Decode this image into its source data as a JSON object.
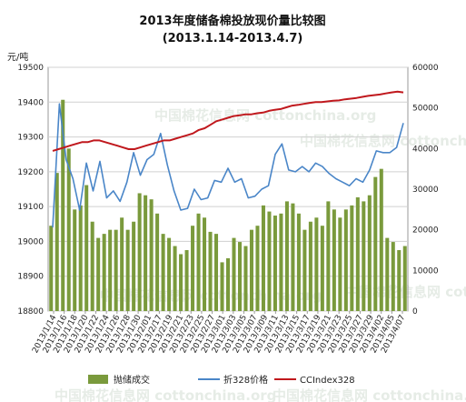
{
  "chart_data": {
    "type": "bar",
    "title": "2013年度储备棉投放现价量比较图",
    "subtitle": "(2013.1.14-2013.4.7)",
    "ylabel_left": "元/吨",
    "ylim_left": [
      18800,
      19500
    ],
    "yticks_left": [
      "18800",
      "18900",
      "19000",
      "19100",
      "19200",
      "19300",
      "19400",
      "19500"
    ],
    "ylim_right": [
      0,
      60000
    ],
    "yticks_right": [
      "0",
      "10000",
      "20000",
      "30000",
      "40000",
      "50000",
      "60000"
    ],
    "x_tick_labels": [
      "2013/1/14",
      "2013/1/16",
      "2013/1/18",
      "2013/1/20",
      "2013/1/22",
      "2013/1/24",
      "2013/1/26",
      "2013/1/28",
      "2013/1/30",
      "2013/2/01",
      "2013/2/17",
      "2013/2/19",
      "2013/2/21",
      "2013/2/23",
      "2013/2/25",
      "2013/2/27",
      "2013/3/01",
      "2013/3/03",
      "2013/3/05",
      "2013/3/07",
      "2013/3/09",
      "2013/3/11",
      "2013/3/13",
      "2013/3/15",
      "2013/3/17",
      "2013/3/19",
      "2013/3/21",
      "2013/3/23",
      "2013/3/25",
      "2013/3/27",
      "2013/3/29",
      "2013/4/02",
      "2013/4/05",
      "2013/4/07"
    ],
    "legend_position": "bottom",
    "grid": true,
    "series": [
      {
        "name": "抛储成交",
        "kind": "bar",
        "axis": "right",
        "color": "#7a9a3c",
        "values": [
          21000,
          34000,
          52000,
          40000,
          25000,
          26000,
          31000,
          22000,
          18000,
          19000,
          20000,
          20000,
          23000,
          20000,
          22000,
          29000,
          28500,
          27500,
          24000,
          19000,
          18000,
          16000,
          14000,
          15000,
          21000,
          24000,
          23000,
          19500,
          19000,
          12000,
          13000,
          18000,
          17000,
          16000,
          20000,
          21000,
          26000,
          24500,
          23500,
          24000,
          27000,
          26500,
          24000,
          20000,
          22000,
          23000,
          21000,
          27000,
          25000,
          23000,
          25000,
          26000,
          28000,
          27000,
          28500,
          33000,
          35000,
          18000,
          17000,
          15000,
          16000
        ]
      },
      {
        "name": "折328价格",
        "kind": "line",
        "axis": "left",
        "color": "#4a86c8",
        "values": [
          19040,
          19395,
          19235,
          19180,
          19090,
          19225,
          19145,
          19230,
          19125,
          19145,
          19115,
          19170,
          19255,
          19190,
          19235,
          19250,
          19310,
          19220,
          19145,
          19090,
          19095,
          19150,
          19120,
          19125,
          19175,
          19170,
          19210,
          19170,
          19180,
          19125,
          19130,
          19150,
          19160,
          19250,
          19280,
          19205,
          19200,
          19215,
          19200,
          19225,
          19215,
          19195,
          19180,
          19170,
          19160,
          19180,
          19170,
          19205,
          19260,
          19255,
          19255,
          19270,
          19340
        ]
      },
      {
        "name": "CCIndex328",
        "kind": "line",
        "axis": "left",
        "color": "#c0181d",
        "values": [
          19260,
          19265,
          19270,
          19275,
          19280,
          19285,
          19285,
          19290,
          19290,
          19285,
          19280,
          19275,
          19270,
          19265,
          19265,
          19270,
          19275,
          19280,
          19285,
          19290,
          19290,
          19295,
          19300,
          19305,
          19310,
          19320,
          19325,
          19335,
          19345,
          19350,
          19355,
          19360,
          19362,
          19365,
          19365,
          19368,
          19370,
          19375,
          19378,
          19380,
          19385,
          19390,
          19392,
          19395,
          19398,
          19400,
          19400,
          19402,
          19404,
          19405,
          19408,
          19410,
          19412,
          19415,
          19418,
          19420,
          19422,
          19425,
          19428,
          19430,
          19428
        ]
      }
    ]
  },
  "watermark": "中国棉花信息网 cottonchina.org"
}
